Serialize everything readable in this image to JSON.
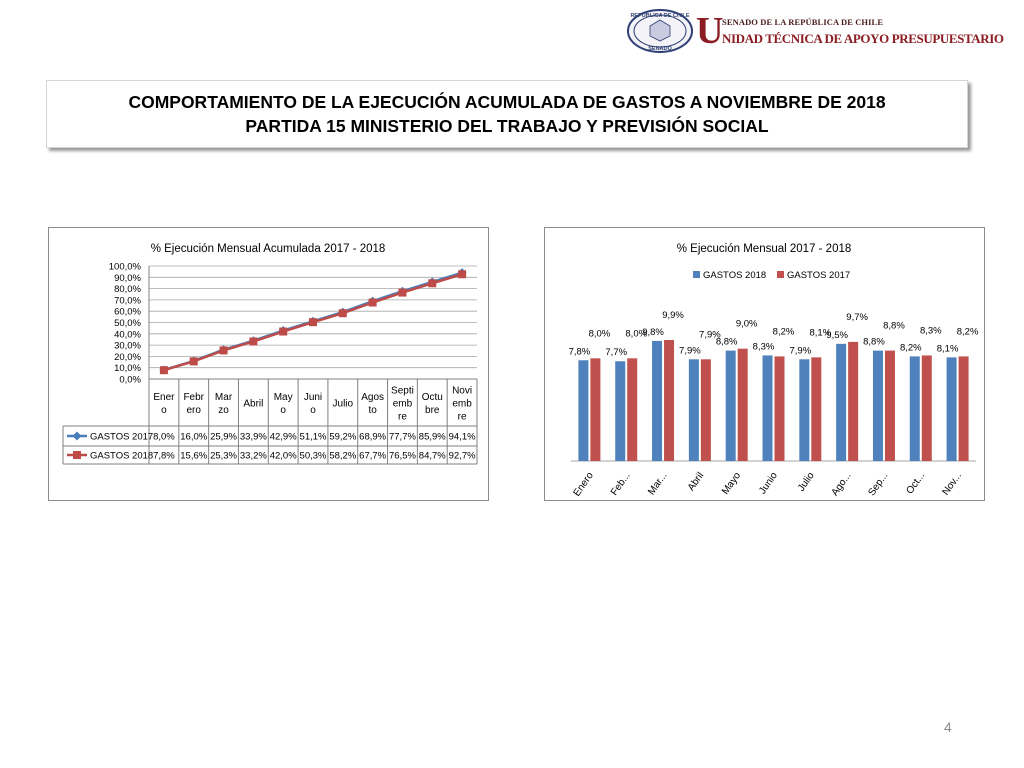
{
  "header": {
    "seal_text_top": "REPÚBLICA DE CHILE",
    "seal_text_bottom": "SENADO",
    "big_letter": "U",
    "line1": "SENADO DE LA REPÚBLICA DE CHILE",
    "line2": "NIDAD TÉCNICA DE APOYO PRESUPUESTARIO"
  },
  "title": {
    "line1": "COMPORTAMIENTO DE LA EJECUCIÓN ACUMULADA DE GASTOS A NOVIEMBRE DE 2018",
    "line2": "PARTIDA 15 MINISTERIO DEL TRABAJO Y PREVISIÓN SOCIAL"
  },
  "page_number": "4",
  "chart_data": [
    {
      "type": "line",
      "title": "% Ejecución Mensual Acumulada 2017 - 2018",
      "ylim": [
        0,
        100
      ],
      "yticks": [
        "0,0%",
        "10,0%",
        "20,0%",
        "30,0%",
        "40,0%",
        "50,0%",
        "60,0%",
        "70,0%",
        "80,0%",
        "90,0%",
        "100,0%"
      ],
      "grid": true,
      "categories": [
        "Enero",
        "Febrero",
        "Marzo",
        "Abril",
        "Mayo",
        "Junio",
        "Julio",
        "Agosto",
        "Septiembre",
        "Octubre",
        "Noviembre"
      ],
      "category_labels": [
        [
          "Ener",
          "o"
        ],
        [
          "Febr",
          "ero"
        ],
        [
          "Mar",
          "zo"
        ],
        [
          "Abril"
        ],
        [
          "May",
          "o"
        ],
        [
          "Juni",
          "o"
        ],
        [
          "Julio"
        ],
        [
          "Agos",
          "to"
        ],
        [
          "Septi",
          "emb",
          "re"
        ],
        [
          "Octu",
          "bre"
        ],
        [
          "Novi",
          "emb",
          "re"
        ]
      ],
      "legend": "data-table",
      "series": [
        {
          "name": "GASTOS 2017",
          "color": "#4a7ebb",
          "marker": "diamond",
          "values": [
            8.0,
            16.0,
            25.9,
            33.9,
            42.9,
            51.1,
            59.2,
            68.9,
            77.7,
            85.9,
            94.1
          ],
          "labels": [
            "8,0%",
            "16,0%",
            "25,9%",
            "33,9%",
            "42,9%",
            "51,1%",
            "59,2%",
            "68,9%",
            "77,7%",
            "85,9%",
            "94,1%"
          ]
        },
        {
          "name": "GASTOS 2018",
          "color": "#be4b48",
          "marker": "square",
          "values": [
            7.8,
            15.6,
            25.3,
            33.2,
            42.0,
            50.3,
            58.2,
            67.7,
            76.5,
            84.7,
            92.7
          ],
          "labels": [
            "7,8%",
            "15,6%",
            "25,3%",
            "33,2%",
            "42,0%",
            "50,3%",
            "58,2%",
            "67,7%",
            "76,5%",
            "84,7%",
            "92,7%"
          ]
        }
      ]
    },
    {
      "type": "bar",
      "title": "% Ejecución Mensual 2017 - 2018",
      "legend": "top",
      "categories": [
        "Enero",
        "Feb...",
        "Mar...",
        "Abril",
        "Mayo",
        "Junio",
        "Julio",
        "Ago...",
        "Sep...",
        "Oct...",
        "Nov..."
      ],
      "series": [
        {
          "name": "GASTOS 2018",
          "color": "#4f81bd",
          "values": [
            7.8,
            7.7,
            9.8,
            7.9,
            8.8,
            8.3,
            7.9,
            9.5,
            8.8,
            8.2,
            8.1
          ],
          "labels": [
            "7,8%",
            "7,7%",
            "9,8%",
            "7,9%",
            "8,8%",
            "8,3%",
            "7,9%",
            "9,5%",
            "8,8%",
            "8,2%",
            "8,1%"
          ]
        },
        {
          "name": "GASTOS 2017",
          "color": "#c0504d",
          "values": [
            8.0,
            8.0,
            9.9,
            7.9,
            9.0,
            8.2,
            8.1,
            9.7,
            8.8,
            8.3,
            8.2
          ],
          "labels": [
            "8,0%",
            "8,0%",
            "9,9%",
            "7,9%",
            "9,0%",
            "8,2%",
            "8,1%",
            "9,7%",
            "8,8%",
            "8,3%",
            "8,2%"
          ]
        }
      ]
    }
  ]
}
